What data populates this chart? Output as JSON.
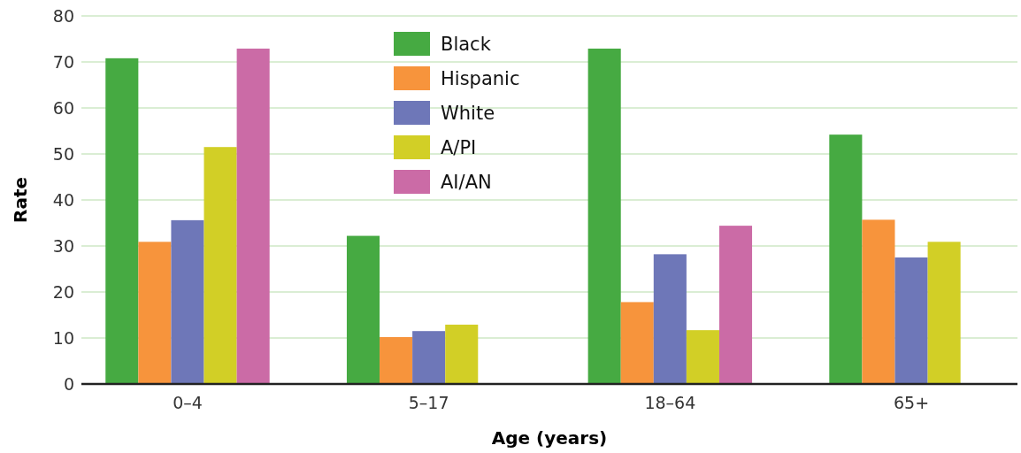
{
  "chart_data": {
    "type": "bar",
    "xlabel": "Age (years)",
    "ylabel": "Rate",
    "categories": [
      "0–4",
      "5–17",
      "18–64",
      "65+"
    ],
    "series": [
      {
        "name": "Black",
        "color": "#46aa42",
        "values": [
          70.8,
          32.2,
          72.9,
          54.2
        ]
      },
      {
        "name": "Hispanic",
        "color": "#f7943c",
        "values": [
          30.9,
          10.2,
          17.8,
          35.7
        ]
      },
      {
        "name": "White",
        "color": "#6e77b8",
        "values": [
          35.6,
          11.5,
          28.2,
          27.5
        ]
      },
      {
        "name": "A/PI",
        "color": "#d2cf26",
        "values": [
          51.5,
          12.9,
          11.7,
          30.9
        ]
      },
      {
        "name": "AI/AN",
        "color": "#cb6ba6",
        "values": [
          72.9,
          null,
          34.4,
          null
        ]
      }
    ],
    "ylim": [
      0,
      80
    ],
    "yticks": [
      0,
      10,
      20,
      30,
      40,
      50,
      60,
      70,
      80
    ],
    "grid": "y",
    "legend": "top"
  }
}
